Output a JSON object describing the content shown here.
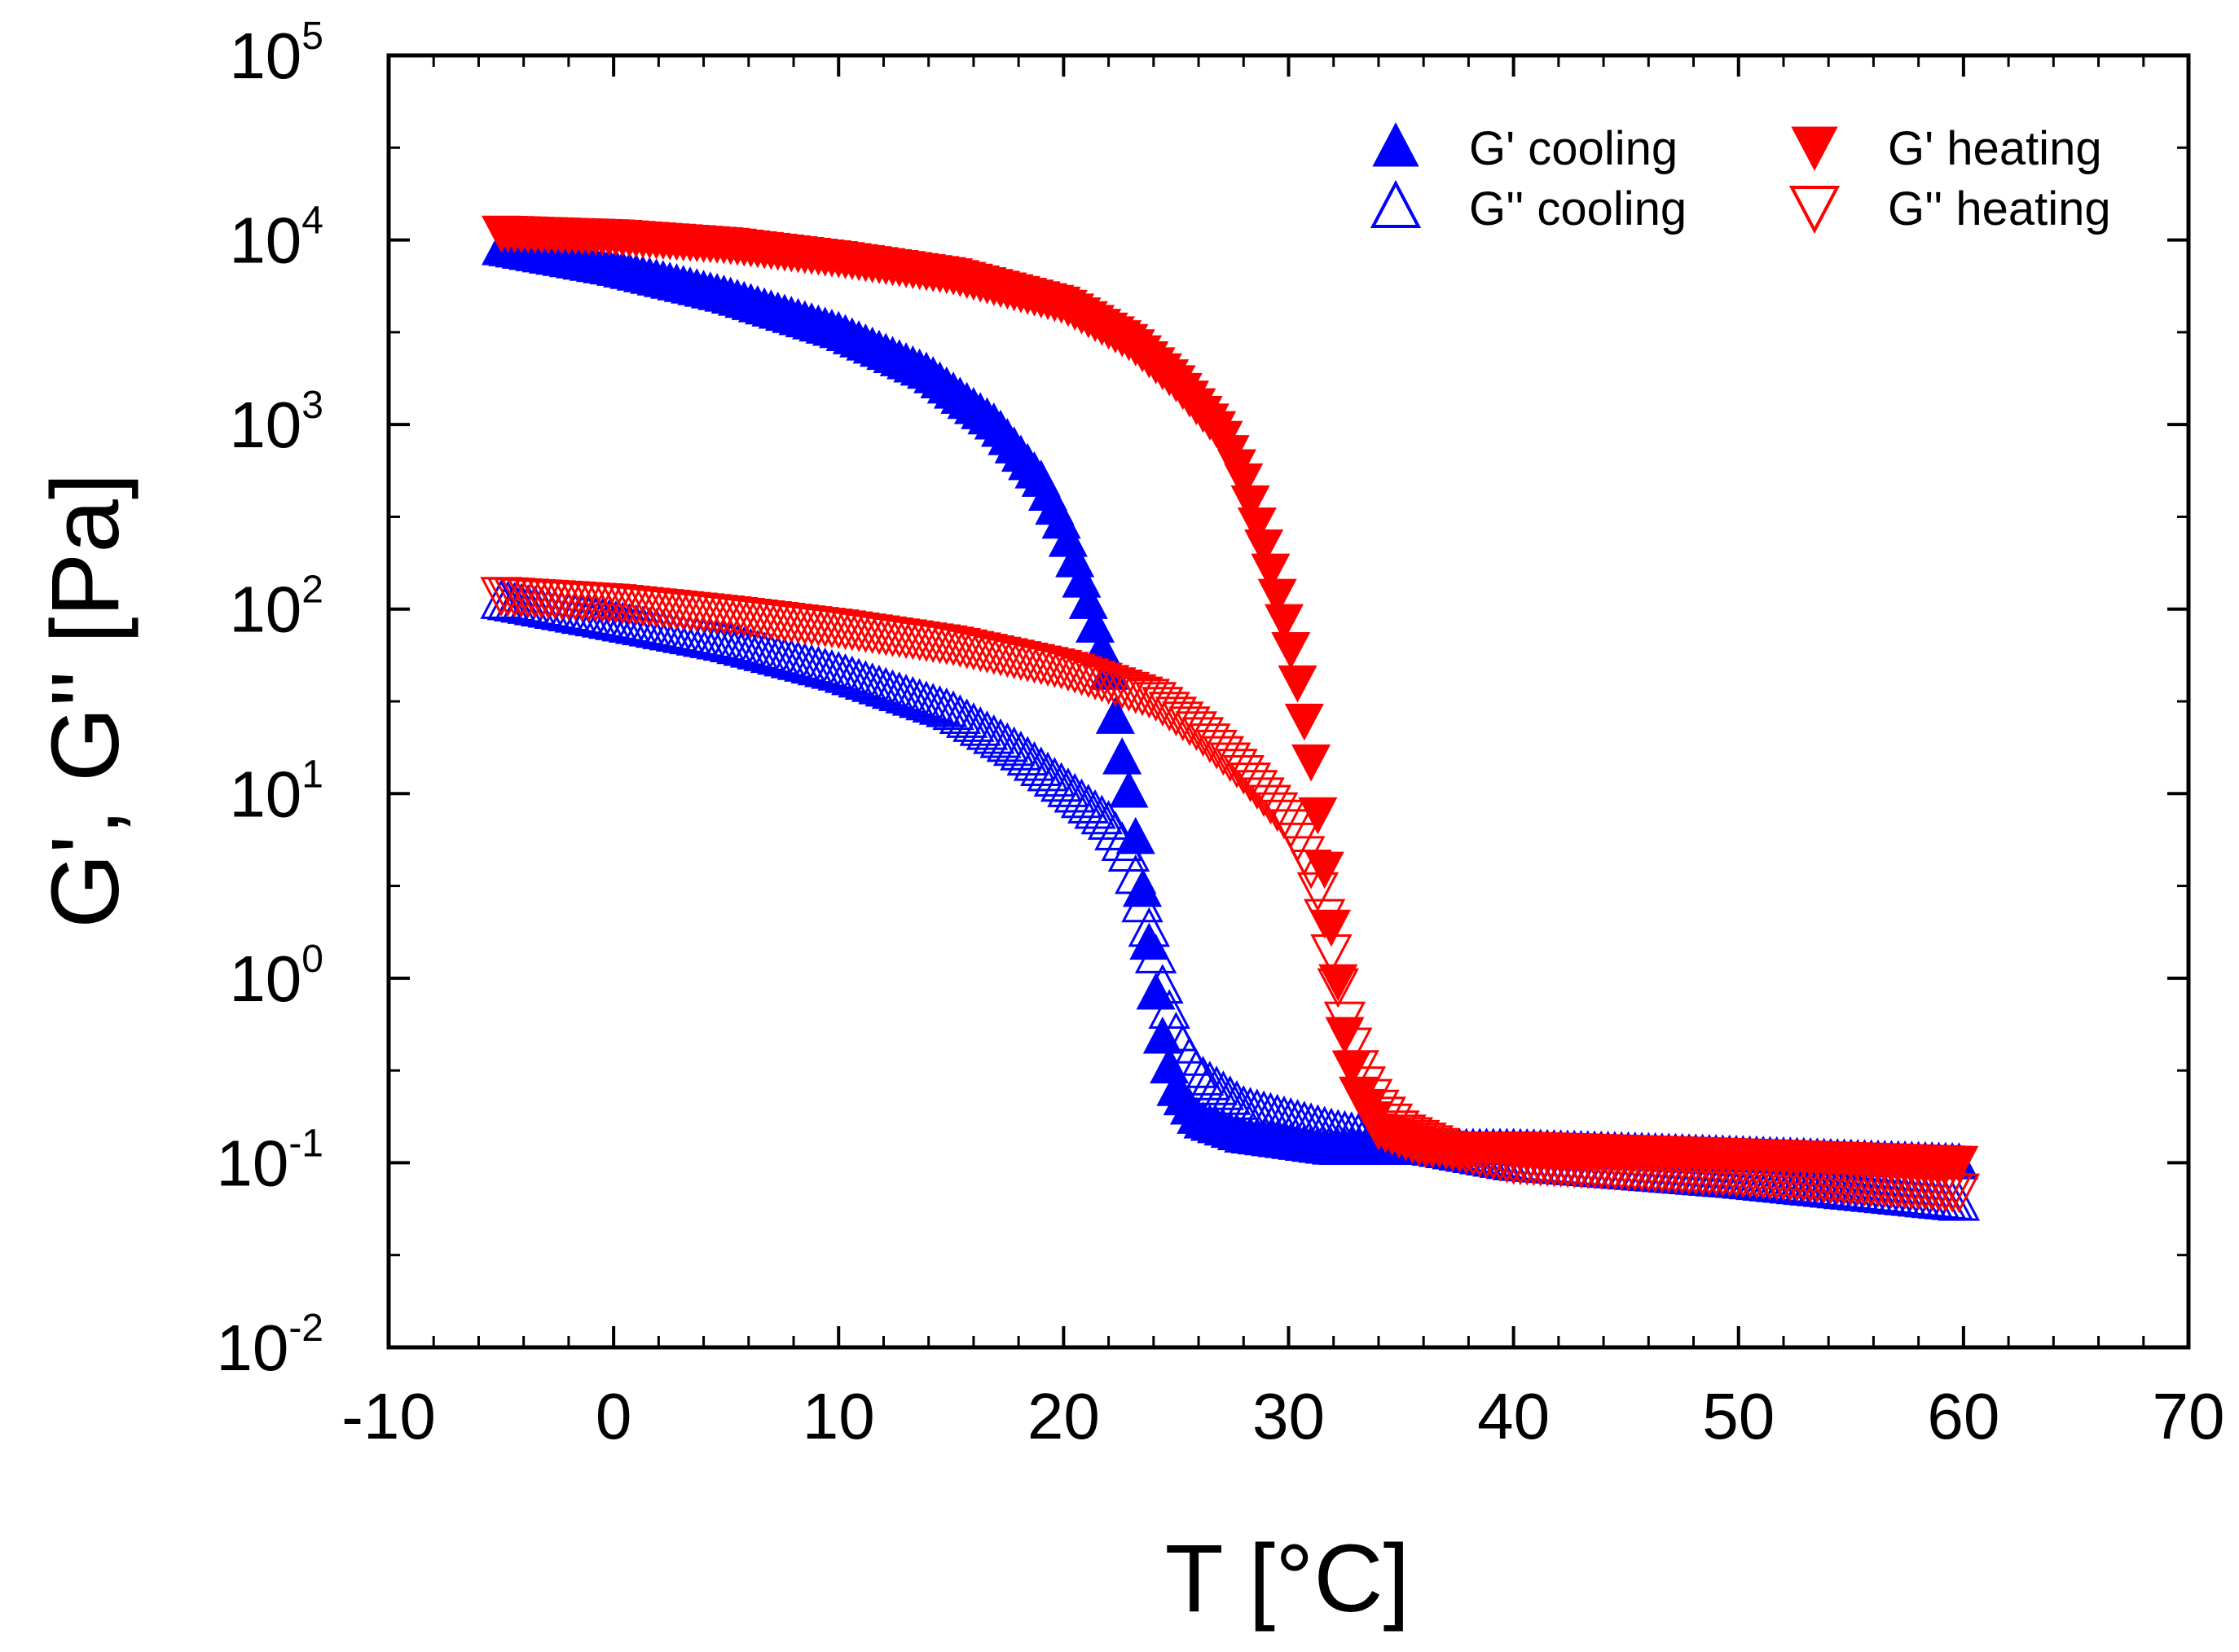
{
  "chart_data": {
    "type": "scatter",
    "xlabel": "T [°C]",
    "ylabel": "G', G'' [Pa]",
    "xlim": [
      -10,
      70
    ],
    "ylim": [
      0.01,
      100000
    ],
    "yscale": "log",
    "x_ticks": [
      -10,
      0,
      10,
      20,
      30,
      40,
      50,
      60,
      70
    ],
    "y_ticks": [
      {
        "base": "10",
        "exp": "-2",
        "value": 0.01
      },
      {
        "base": "10",
        "exp": "-1",
        "value": 0.1
      },
      {
        "base": "10",
        "exp": "0",
        "value": 1
      },
      {
        "base": "10",
        "exp": "1",
        "value": 10
      },
      {
        "base": "10",
        "exp": "2",
        "value": 100
      },
      {
        "base": "10",
        "exp": "3",
        "value": 1000
      },
      {
        "base": "10",
        "exp": "4",
        "value": 10000
      },
      {
        "base": "10",
        "exp": "5",
        "value": 100000
      }
    ],
    "legend_position": "top-right",
    "series": [
      {
        "name": "G' cooling",
        "color": "#0000ff",
        "marker": "triangle-up",
        "filled": true,
        "x": [
          -5,
          0,
          5,
          10,
          14,
          17,
          19,
          20,
          21,
          22,
          22.5,
          23,
          23.5,
          24,
          24.5,
          25,
          26,
          28,
          32,
          40,
          50,
          60
        ],
        "y": [
          9000,
          7000,
          5000,
          3200,
          1900,
          1000,
          500,
          280,
          120,
          45,
          18,
          9,
          3,
          1,
          0.4,
          0.25,
          0.17,
          0.14,
          0.12,
          0.12,
          0.11,
          0.1
        ]
      },
      {
        "name": "G'' cooling",
        "color": "#0000ff",
        "marker": "triangle-up",
        "filled": false,
        "x": [
          -5,
          0,
          5,
          10,
          15,
          18,
          20,
          22,
          23,
          23.5,
          24,
          24.5,
          25,
          26,
          28,
          32,
          40,
          50,
          60
        ],
        "y": [
          110,
          85,
          65,
          45,
          28,
          17,
          11,
          7,
          4.5,
          2.5,
          1.5,
          0.8,
          0.5,
          0.3,
          0.2,
          0.15,
          0.1,
          0.08,
          0.06
        ]
      },
      {
        "name": "G' heating",
        "color": "#ff0000",
        "marker": "triangle-down",
        "filled": true,
        "x": [
          -5,
          0,
          5,
          10,
          15,
          20,
          23,
          25,
          27,
          28,
          29,
          30,
          30.5,
          31,
          31.5,
          32,
          32.5,
          33,
          34,
          36,
          40,
          50,
          60
        ],
        "y": [
          11000,
          10500,
          9500,
          8000,
          6500,
          4500,
          2800,
          1700,
          900,
          500,
          200,
          70,
          35,
          15,
          5,
          1.5,
          0.5,
          0.25,
          0.15,
          0.12,
          0.12,
          0.11,
          0.1
        ]
      },
      {
        "name": "G'' heating",
        "color": "#ff0000",
        "marker": "triangle-down",
        "filled": false,
        "x": [
          -5,
          0,
          5,
          10,
          15,
          20,
          22,
          24,
          26,
          28,
          30,
          31,
          31.5,
          32,
          32.5,
          33,
          33.5,
          34,
          35,
          37,
          40,
          50,
          60
        ],
        "y": [
          120,
          110,
          95,
          80,
          65,
          48,
          40,
          33,
          22,
          13,
          7,
          4,
          2.5,
          1.2,
          0.6,
          0.35,
          0.25,
          0.2,
          0.15,
          0.12,
          0.1,
          0.085,
          0.07
        ]
      }
    ]
  }
}
